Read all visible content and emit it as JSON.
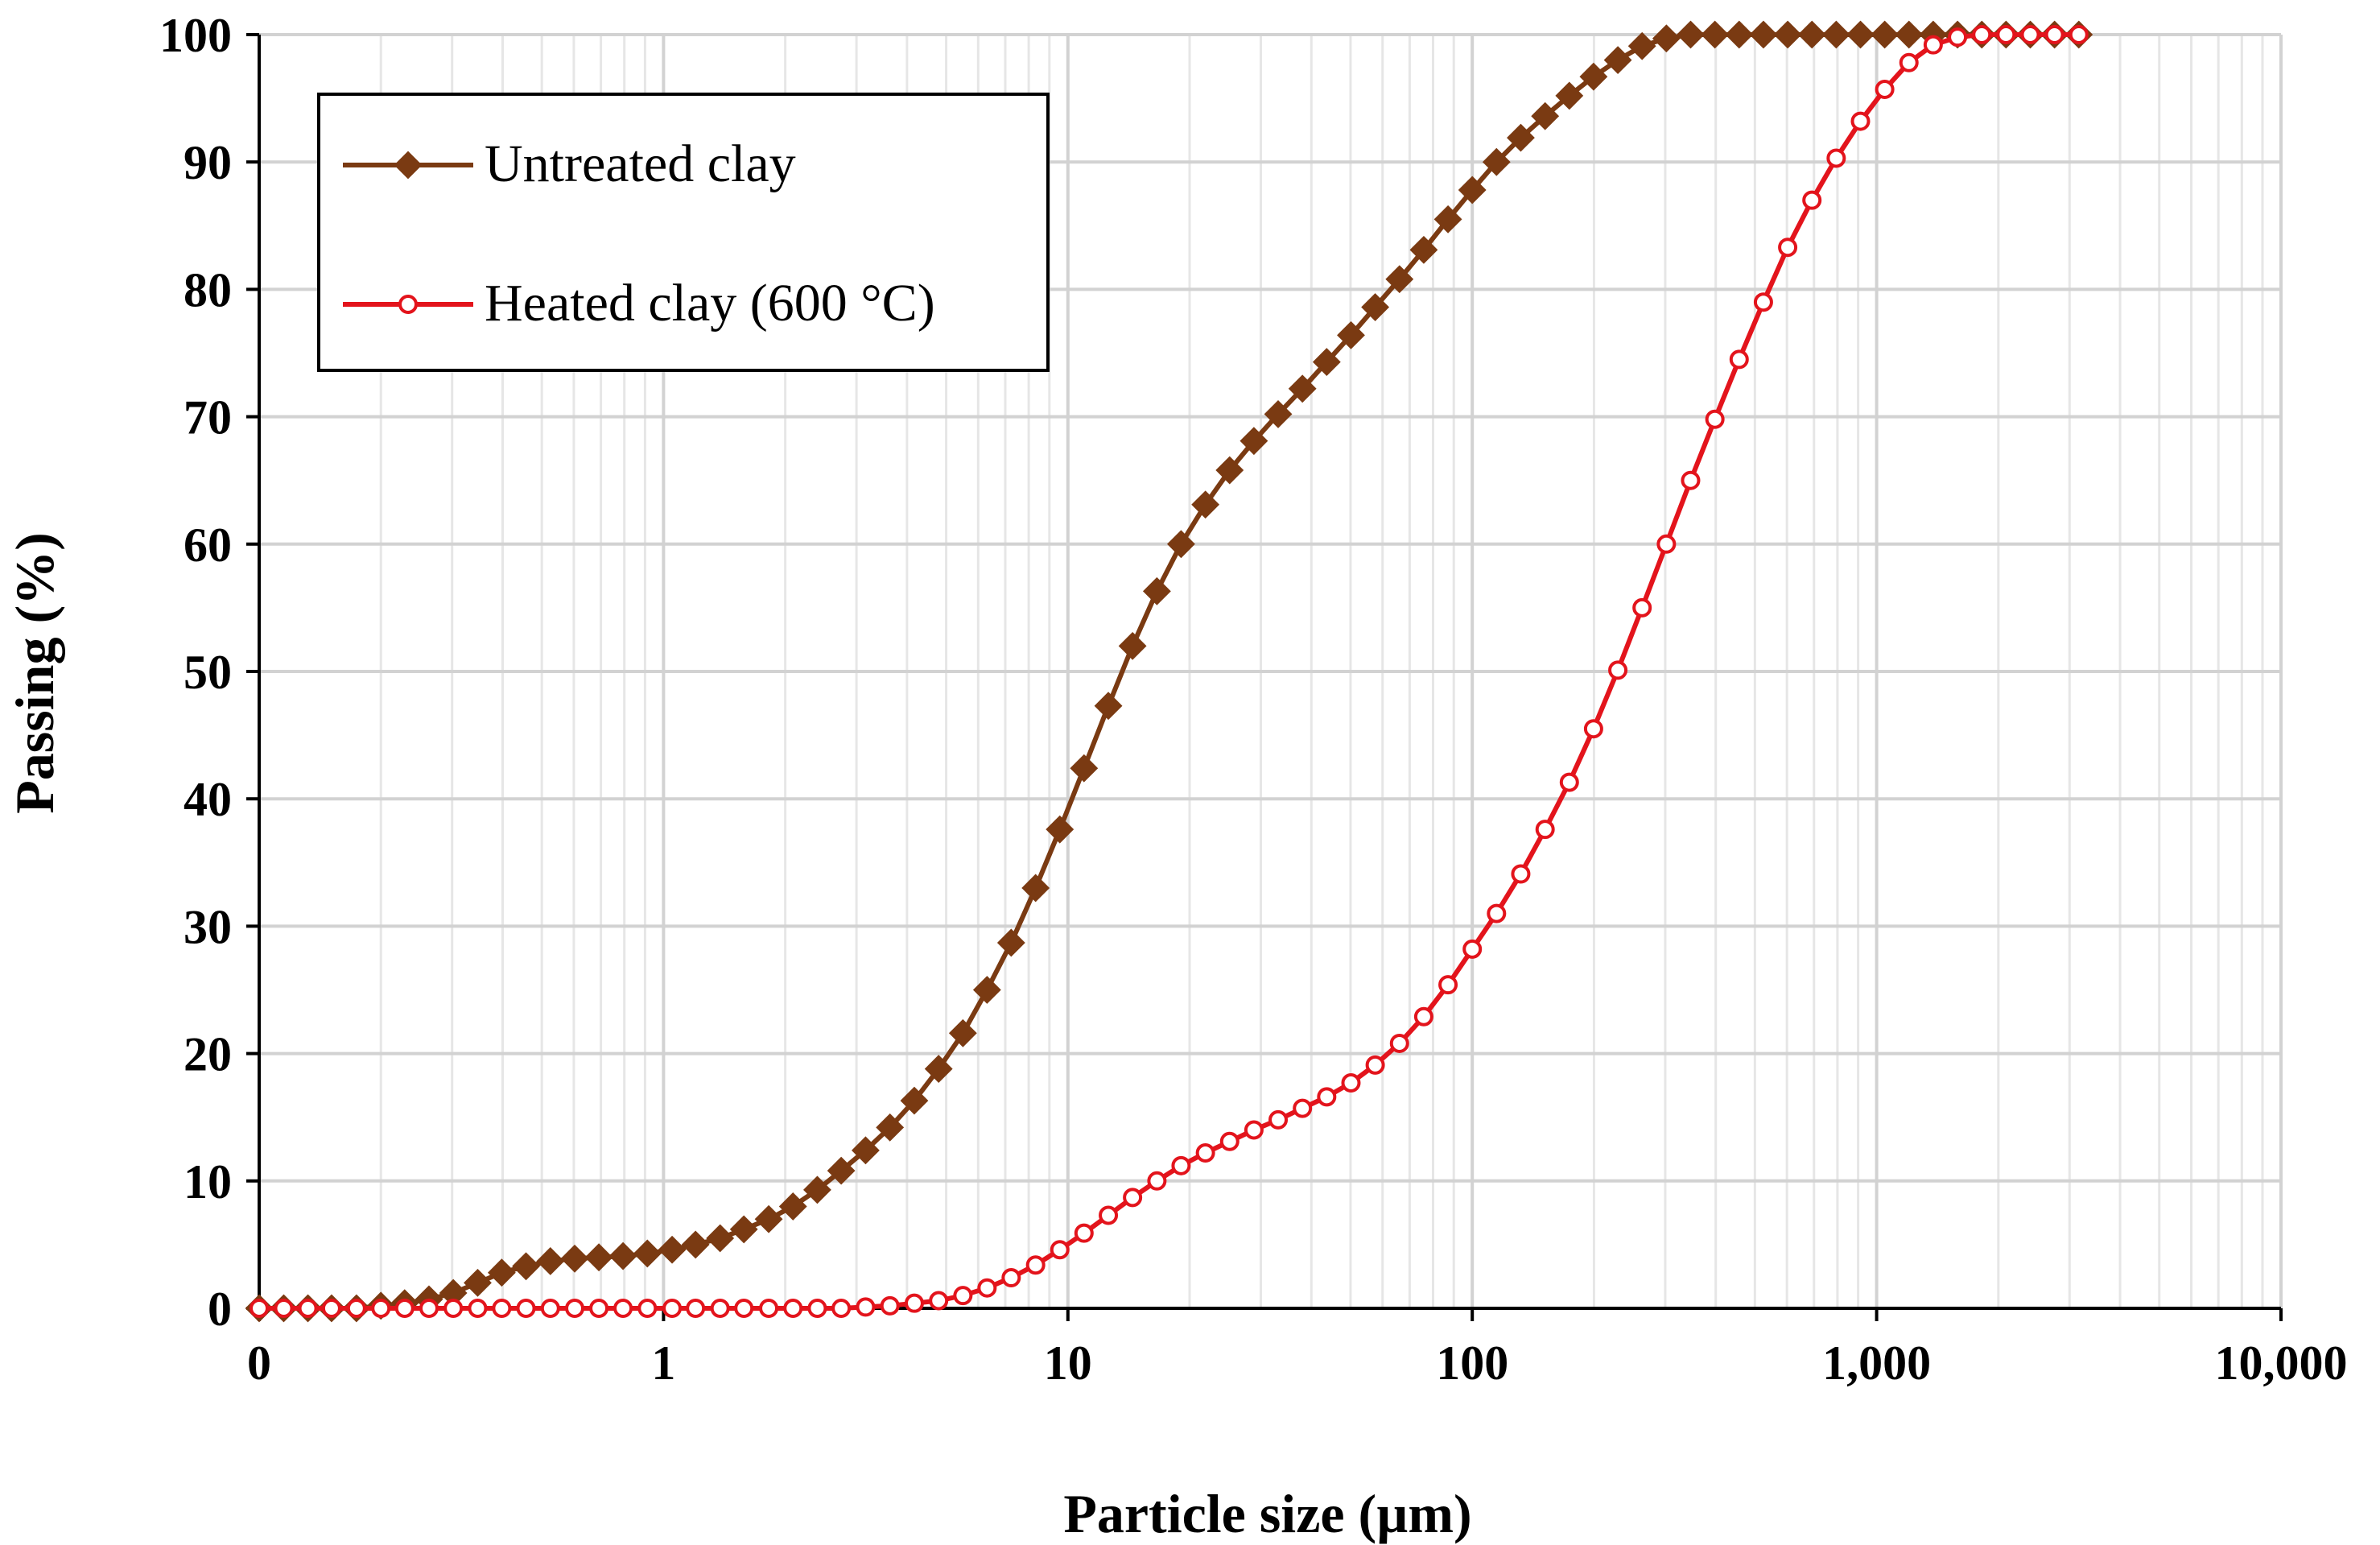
{
  "chart_data": {
    "type": "line",
    "xlabel": "Particle size (µm)",
    "ylabel": "Passing (%)",
    "x_scale": "log",
    "xlim": [
      0.1,
      10000
    ],
    "ylim": [
      0,
      100
    ],
    "x_ticks": [
      {
        "value": 0.1,
        "label": "0"
      },
      {
        "value": 1,
        "label": "1"
      },
      {
        "value": 10,
        "label": "10"
      },
      {
        "value": 100,
        "label": "100"
      },
      {
        "value": 1000,
        "label": "1,000"
      },
      {
        "value": 10000,
        "label": "10,000"
      }
    ],
    "y_ticks": [
      0,
      10,
      20,
      30,
      40,
      50,
      60,
      70,
      80,
      90,
      100
    ],
    "grid": true,
    "legend": {
      "placement": "top-left",
      "boxed": true
    },
    "series": [
      {
        "name": "Untreated clay",
        "color": "#7a3a12",
        "marker": "diamond",
        "points": [
          [
            0.1,
            0
          ],
          [
            0.115,
            0
          ],
          [
            0.132,
            0
          ],
          [
            0.151,
            0
          ],
          [
            0.174,
            0
          ],
          [
            0.2,
            0.2
          ],
          [
            0.229,
            0.4
          ],
          [
            0.263,
            0.7
          ],
          [
            0.302,
            1.2
          ],
          [
            0.347,
            2.0
          ],
          [
            0.398,
            2.8
          ],
          [
            0.457,
            3.3
          ],
          [
            0.525,
            3.7
          ],
          [
            0.603,
            3.9
          ],
          [
            0.692,
            4.0
          ],
          [
            0.794,
            4.1
          ],
          [
            0.912,
            4.3
          ],
          [
            1.05,
            4.6
          ],
          [
            1.2,
            5.0
          ],
          [
            1.38,
            5.5
          ],
          [
            1.58,
            6.2
          ],
          [
            1.82,
            7.0
          ],
          [
            2.09,
            8.0
          ],
          [
            2.4,
            9.3
          ],
          [
            2.75,
            10.8
          ],
          [
            3.16,
            12.4
          ],
          [
            3.63,
            14.2
          ],
          [
            4.17,
            16.3
          ],
          [
            4.79,
            18.8
          ],
          [
            5.5,
            21.6
          ],
          [
            6.31,
            25
          ],
          [
            7.24,
            28.7
          ],
          [
            8.32,
            33
          ],
          [
            9.55,
            37.6
          ],
          [
            10.96,
            42.4
          ],
          [
            12.59,
            47.3
          ],
          [
            14.45,
            52
          ],
          [
            16.6,
            56.3
          ],
          [
            19.05,
            60
          ],
          [
            21.88,
            63.1
          ],
          [
            25.12,
            65.8
          ],
          [
            28.84,
            68.1
          ],
          [
            33.11,
            70.2
          ],
          [
            38.02,
            72.2
          ],
          [
            43.65,
            74.3
          ],
          [
            50.12,
            76.4
          ],
          [
            57.54,
            78.6
          ],
          [
            66.07,
            80.8
          ],
          [
            75.86,
            83.1
          ],
          [
            87.1,
            85.5
          ],
          [
            100,
            87.8
          ],
          [
            114.8,
            90
          ],
          [
            131.8,
            91.9
          ],
          [
            151.4,
            93.6
          ],
          [
            173.8,
            95.2
          ],
          [
            199.5,
            96.7
          ],
          [
            229.1,
            98.0
          ],
          [
            263,
            99.1
          ],
          [
            302,
            99.7
          ],
          [
            346.7,
            100
          ],
          [
            398.1,
            100
          ],
          [
            457.1,
            100
          ],
          [
            524.8,
            100
          ],
          [
            602.6,
            100
          ],
          [
            691.8,
            100
          ],
          [
            794.3,
            100
          ],
          [
            912,
            100
          ],
          [
            1047,
            100
          ],
          [
            1202,
            100
          ],
          [
            1380,
            100
          ],
          [
            1585,
            100
          ],
          [
            1820,
            100
          ],
          [
            2089,
            100
          ],
          [
            2399,
            100
          ],
          [
            2754,
            100
          ],
          [
            3162,
            100
          ]
        ]
      },
      {
        "name": "Heated clay (600 °C)",
        "color": "#e3141c",
        "marker": "circle",
        "points": [
          [
            0.1,
            0
          ],
          [
            0.115,
            0
          ],
          [
            0.132,
            0
          ],
          [
            0.151,
            0
          ],
          [
            0.174,
            0
          ],
          [
            0.2,
            0
          ],
          [
            0.229,
            0
          ],
          [
            0.263,
            0
          ],
          [
            0.302,
            0
          ],
          [
            0.347,
            0
          ],
          [
            0.398,
            0
          ],
          [
            0.457,
            0
          ],
          [
            0.525,
            0
          ],
          [
            0.603,
            0
          ],
          [
            0.692,
            0
          ],
          [
            0.794,
            0
          ],
          [
            0.912,
            0
          ],
          [
            1.05,
            0
          ],
          [
            1.2,
            0
          ],
          [
            1.38,
            0
          ],
          [
            1.58,
            0
          ],
          [
            1.82,
            0
          ],
          [
            2.09,
            0
          ],
          [
            2.4,
            0
          ],
          [
            2.75,
            0
          ],
          [
            3.16,
            0.1
          ],
          [
            3.63,
            0.2
          ],
          [
            4.17,
            0.4
          ],
          [
            4.79,
            0.6
          ],
          [
            5.5,
            1.0
          ],
          [
            6.31,
            1.6
          ],
          [
            7.24,
            2.4
          ],
          [
            8.32,
            3.4
          ],
          [
            9.55,
            4.6
          ],
          [
            10.96,
            5.9
          ],
          [
            12.59,
            7.3
          ],
          [
            14.45,
            8.7
          ],
          [
            16.6,
            10.0
          ],
          [
            19.05,
            11.2
          ],
          [
            21.88,
            12.2
          ],
          [
            25.12,
            13.1
          ],
          [
            28.84,
            14.0
          ],
          [
            33.11,
            14.8
          ],
          [
            38.02,
            15.7
          ],
          [
            43.65,
            16.6
          ],
          [
            50.12,
            17.7
          ],
          [
            57.54,
            19.1
          ],
          [
            66.07,
            20.8
          ],
          [
            75.86,
            22.9
          ],
          [
            87.1,
            25.4
          ],
          [
            100,
            28.2
          ],
          [
            114.8,
            31.0
          ],
          [
            131.8,
            34.1
          ],
          [
            151.4,
            37.6
          ],
          [
            173.8,
            41.3
          ],
          [
            199.5,
            45.5
          ],
          [
            229.1,
            50.1
          ],
          [
            263,
            55.0
          ],
          [
            302,
            60.0
          ],
          [
            346.7,
            65.0
          ],
          [
            398.1,
            69.8
          ],
          [
            457.1,
            74.5
          ],
          [
            524.8,
            79.0
          ],
          [
            602.6,
            83.3
          ],
          [
            691.8,
            87.0
          ],
          [
            794.3,
            90.3
          ],
          [
            912,
            93.2
          ],
          [
            1047,
            95.7
          ],
          [
            1202,
            97.8
          ],
          [
            1380,
            99.2
          ],
          [
            1585,
            99.8
          ],
          [
            1820,
            100
          ],
          [
            2089,
            100
          ],
          [
            2399,
            100
          ],
          [
            2754,
            100
          ],
          [
            3162,
            100
          ]
        ]
      }
    ]
  }
}
